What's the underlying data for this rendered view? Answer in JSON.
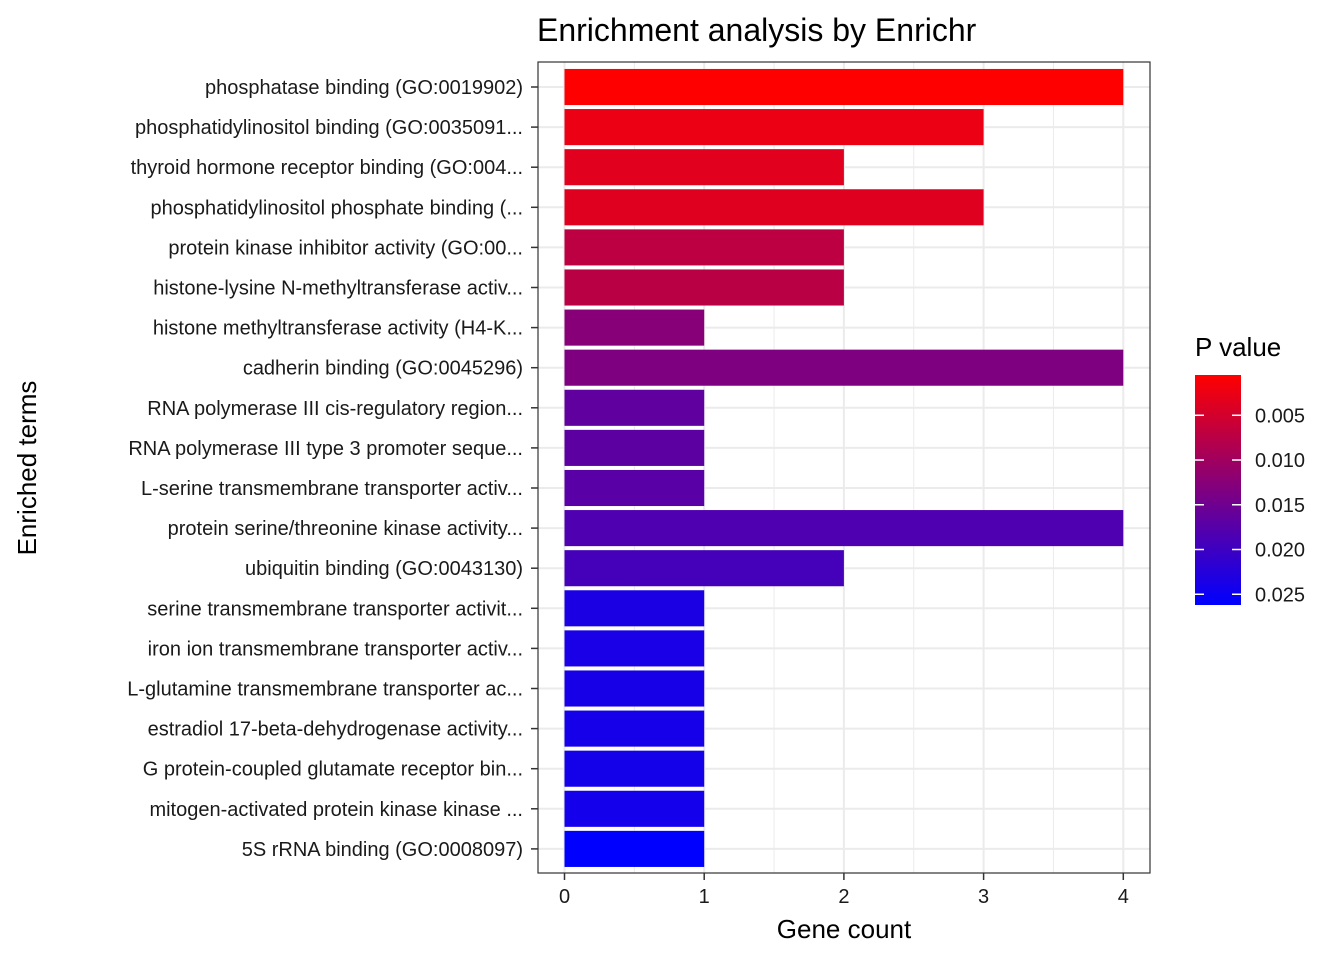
{
  "chart_data": {
    "type": "bar",
    "orientation": "horizontal",
    "title": "Enrichment analysis by Enrichr",
    "xlabel": "Gene count",
    "ylabel": "Enriched terms",
    "xlim": [
      -0.1,
      4.2
    ],
    "xticks": [
      0,
      1,
      2,
      3,
      4
    ],
    "grid": true,
    "categories": [
      "phosphatase binding (GO:0019902)",
      "phosphatidylinositol binding (GO:0035091...",
      "thyroid hormone receptor binding (GO:004...",
      "phosphatidylinositol phosphate binding (...",
      "protein kinase inhibitor activity (GO:00...",
      "histone-lysine N-methyltransferase activ...",
      "histone methyltransferase activity (H4-K...",
      "cadherin binding (GO:0045296)",
      "RNA polymerase III cis-regulatory region...",
      "RNA polymerase III type 3 promoter seque...",
      "L-serine transmembrane transporter activ...",
      "protein serine/threonine kinase activity...",
      "ubiquitin binding (GO:0043130)",
      "serine transmembrane transporter activit...",
      "iron ion transmembrane transporter activ...",
      "L-glutamine transmembrane transporter ac...",
      "estradiol 17-beta-dehydrogenase activity...",
      "G protein-coupled glutamate receptor bin...",
      "mitogen-activated protein kinase kinase ...",
      "5S rRNA binding (GO:0008097)"
    ],
    "values": [
      4,
      3,
      2,
      3,
      2,
      2,
      1,
      4,
      1,
      1,
      1,
      4,
      2,
      1,
      1,
      1,
      1,
      1,
      1,
      1
    ],
    "p_values": [
      0.0005,
      0.0025,
      0.0035,
      0.0037,
      0.0072,
      0.0075,
      0.0125,
      0.0135,
      0.0165,
      0.0168,
      0.0172,
      0.0182,
      0.0192,
      0.0235,
      0.0237,
      0.0239,
      0.024,
      0.0241,
      0.0242,
      0.0262
    ],
    "legend": {
      "title": "P value",
      "placement": "right",
      "range": [
        0.0005,
        0.0262
      ],
      "low_color": "#ff0000",
      "high_color": "#0000ff",
      "ticks": [
        0.005,
        0.01,
        0.015,
        0.02,
        0.025
      ],
      "tick_labels": [
        "0.005",
        "0.010",
        "0.015",
        "0.020",
        "0.025"
      ]
    }
  }
}
